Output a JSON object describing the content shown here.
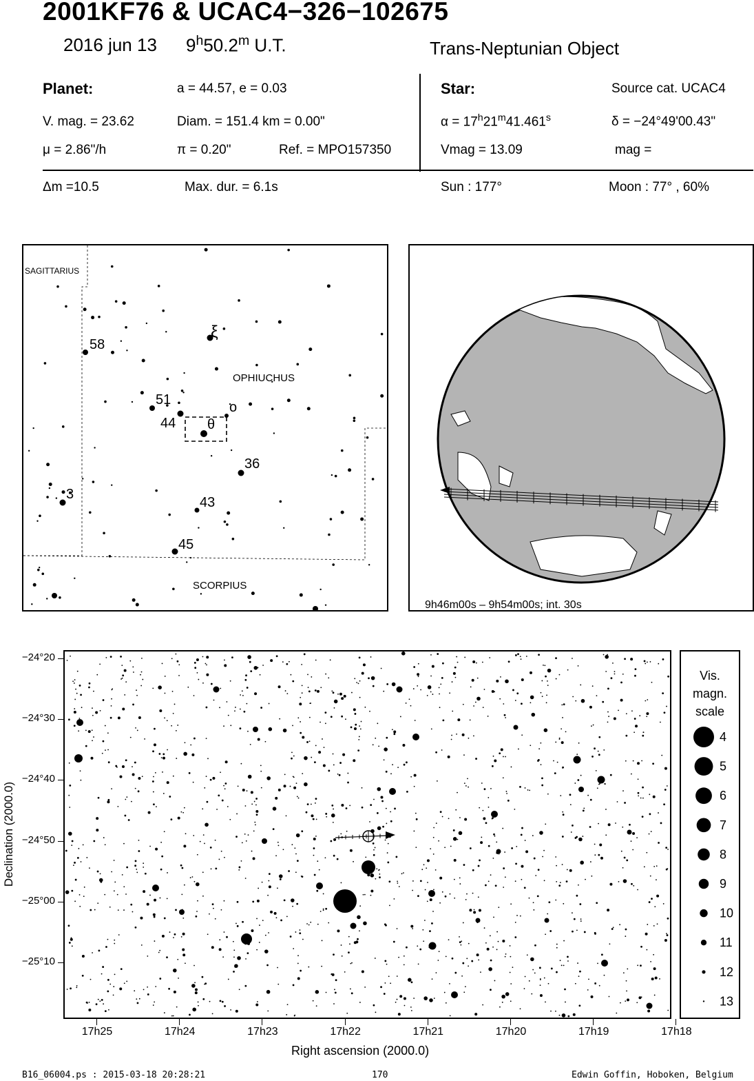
{
  "header": {
    "title": "2001KF76  &  UCAC4−326−102675",
    "date": "2016 jun 13",
    "time_h": "9",
    "time_h_sup": "h",
    "time_m": "50.2",
    "time_m_sup": "m",
    "time_ut": " U.T.",
    "object_type": "Trans-Neptunian Object"
  },
  "planet": {
    "heading": "Planet:",
    "orbit": "a = 44.57, e = 0.03",
    "vmag": "V. mag. = 23.62",
    "diam": "Diam. = 151.4 km = 0.00\"",
    "mu": "μ =  2.86\"/h",
    "pi": "π =  0.20\"",
    "ref": "Ref. = MPO157350"
  },
  "star": {
    "heading": "Star:",
    "source": "Source cat.  UCAC4",
    "alpha_prefix": "α = 17",
    "alpha_h": "h",
    "alpha_mid": "21",
    "alpha_m": "m",
    "alpha_s_val": "41.461",
    "alpha_s": "s",
    "delta": "δ = −24°49'00.43\"",
    "vmag": "Vmag = 13.09",
    "mag": "mag ="
  },
  "event": {
    "dm": "Δm =10.5",
    "maxdur": "Max. dur. = 6.1s",
    "sun": "Sun : 177°",
    "moon": "Moon :  77° , 60%"
  },
  "finder": {
    "constellations": [
      "SAGITTARIUS",
      "OPHIUCHUS",
      "SCORPIUS"
    ],
    "star_labels": [
      "58",
      "51",
      "44",
      "36",
      "3",
      "43",
      "45",
      "ξ",
      "o",
      "θ"
    ]
  },
  "globe": {
    "caption": "9h46m00s –  9h54m00s; int. 30s",
    "land_color": "#b4b4b4"
  },
  "starfield": {
    "ra_ticks": [
      "17h25",
      "17h24",
      "17h23",
      "17h22",
      "17h21",
      "17h20",
      "17h19",
      "17h18"
    ],
    "dec_ticks": [
      "−24°20",
      "−24°30",
      "−24°40",
      "−24°50",
      "−25°00",
      "−25°10"
    ],
    "xlabel": "Right ascension (2000.0)",
    "ylabel": "Declination (2000.0)"
  },
  "scale": {
    "title_lines": [
      "Vis.",
      "magn.",
      "scale"
    ],
    "mags": [
      "4",
      "5",
      "6",
      "7",
      "8",
      "9",
      "10",
      "11",
      "12",
      "13"
    ]
  },
  "footer": {
    "file": "B16_06004.ps : 2015-03-18 20:28:21",
    "page": "170",
    "author": "Edwin Goffin, Hoboken, Belgium"
  }
}
